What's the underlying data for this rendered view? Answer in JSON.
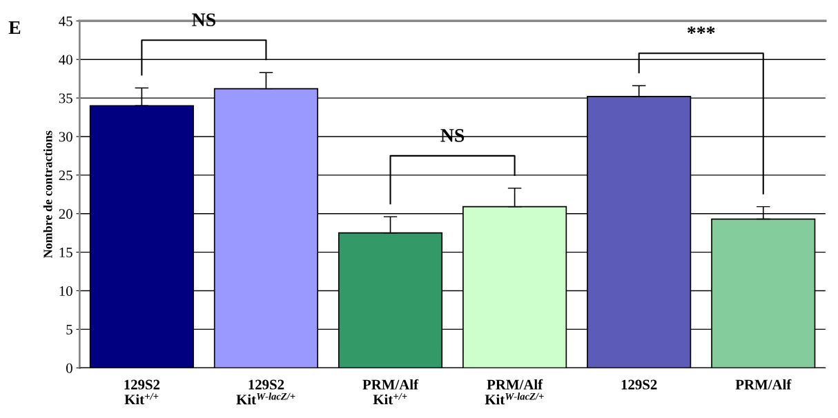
{
  "chart_data": {
    "type": "bar",
    "categories": [
      "129S2\nKit$^{+/+}$",
      "129S2\nKit$^{W-lacZ/+}$",
      "PRM/Alf\nKit$^{+/+}$",
      "PRM/Alf\nKit$^{W-lacZ/+}$",
      "129S2",
      "PRM/Alf"
    ],
    "values": [
      34.0,
      36.2,
      17.5,
      20.9,
      35.2,
      19.3
    ],
    "errors": [
      2.3,
      2.1,
      2.1,
      2.4,
      1.4,
      1.6
    ],
    "colors": [
      "#000080",
      "#9999ff",
      "#339966",
      "#ccffcc",
      "#5c5cb8",
      "#85cc9c"
    ],
    "ylabel": "Nombre de contractions",
    "ylim": [
      0,
      45
    ],
    "yticks": [
      0,
      5,
      10,
      15,
      20,
      25,
      30,
      35,
      40,
      45
    ],
    "grid": "y",
    "annotations": [
      "E",
      "NS",
      "NS",
      "***"
    ]
  }
}
